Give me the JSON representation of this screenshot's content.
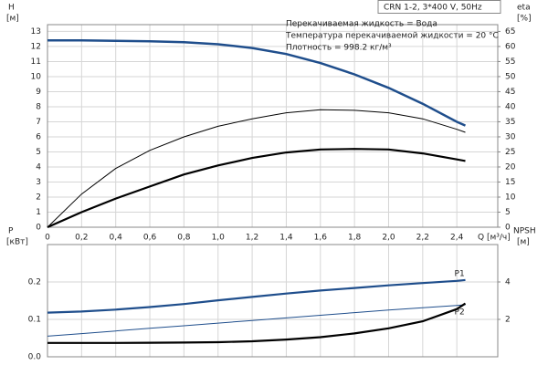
{
  "chart_data": [
    {
      "type": "line",
      "title": "CRN 1-2, 3*400 V, 50Hz",
      "annotations": [
        "Перекачиваемая жидкость = Вода",
        "Температура перекачиваемой жидкости = 20 °C",
        "Плотность = 998.2 кг/м³"
      ],
      "ylabel": "H",
      "yunit": "[м]",
      "y2label": "eta",
      "y2unit": "[%]",
      "xlabel": "Q [м³/ч]",
      "x": [
        0,
        0.2,
        0.4,
        0.6,
        0.8,
        1.0,
        1.2,
        1.4,
        1.6,
        1.8,
        2.0,
        2.2,
        2.4,
        2.45
      ],
      "xlim": [
        0,
        2.64
      ],
      "xticks": [
        0,
        {
          "value": 0.2,
          "label": "0,2"
        },
        {
          "value": 0.4,
          "label": "0,4"
        },
        {
          "value": 0.6,
          "label": "0,6"
        },
        {
          "value": 0.8,
          "label": "0,8"
        },
        {
          "value": 1.0,
          "label": "1,0"
        },
        {
          "value": 1.2,
          "label": "1,2"
        },
        {
          "value": 1.4,
          "label": "1,4"
        },
        {
          "value": 1.6,
          "label": "1,6"
        },
        {
          "value": 1.8,
          "label": "1,8"
        },
        {
          "value": 2.0,
          "label": "2,0"
        },
        {
          "value": 2.2,
          "label": "2,2"
        },
        {
          "value": 2.4,
          "label": "2,4"
        }
      ],
      "ylim": [
        0,
        13.45
      ],
      "yticks": [
        0,
        1,
        2,
        3,
        4,
        5,
        6,
        7,
        8,
        9,
        10,
        11,
        12,
        13
      ],
      "y2lim": [
        0,
        67.25
      ],
      "y2ticks": [
        0,
        5,
        10,
        15,
        20,
        25,
        30,
        35,
        40,
        45,
        50,
        55,
        60,
        65
      ],
      "grid": true,
      "series": [
        {
          "color": "#1f4e8c",
          "width": 2.5,
          "values": [
            12.4,
            12.4,
            12.38,
            12.35,
            12.28,
            12.15,
            11.9,
            11.5,
            10.9,
            10.15,
            9.25,
            8.2,
            7.0,
            6.75
          ]
        },
        {
          "color": "#000000",
          "width": 1,
          "axis": "y2",
          "values": [
            0,
            11,
            19.5,
            25.5,
            30,
            33.5,
            36,
            38,
            39,
            38.8,
            38,
            36,
            32.5,
            31.5
          ]
        },
        {
          "color": "#000000",
          "width": 2.2,
          "axis": "y2",
          "values": [
            0,
            5,
            9.5,
            13.5,
            17.5,
            20.5,
            23,
            24.8,
            25.8,
            26,
            25.8,
            24.5,
            22.5,
            22
          ]
        }
      ]
    },
    {
      "type": "line",
      "ylabel": "P",
      "yunit": "[кВт]",
      "y2label": "NPSH",
      "y2unit": "[м]",
      "x": [
        0,
        0.2,
        0.4,
        0.6,
        0.8,
        1.0,
        1.2,
        1.4,
        1.6,
        1.8,
        2.0,
        2.2,
        2.4,
        2.45
      ],
      "xlim": [
        0,
        2.64
      ],
      "ylim": [
        0,
        0.3
      ],
      "yticks": [
        {
          "value": 0,
          "label": "0.0"
        },
        0.1,
        0.2
      ],
      "y2lim": [
        0,
        6
      ],
      "y2ticks": [
        2,
        4
      ],
      "grid": true,
      "series": [
        {
          "name": "P1",
          "color": "#1f4e8c",
          "width": 2.2,
          "values": [
            0.118,
            0.121,
            0.126,
            0.133,
            0.141,
            0.151,
            0.16,
            0.169,
            0.177,
            0.184,
            0.191,
            0.197,
            0.203,
            0.205
          ]
        },
        {
          "name": "P2",
          "color": "#1f4e8c",
          "width": 1,
          "values": [
            0.055,
            0.062,
            0.069,
            0.076,
            0.083,
            0.09,
            0.097,
            0.104,
            0.111,
            0.118,
            0.125,
            0.131,
            0.137,
            0.139
          ]
        },
        {
          "color": "#000000",
          "width": 2.2,
          "axis": "y2",
          "values": [
            0.74,
            0.74,
            0.74,
            0.75,
            0.76,
            0.78,
            0.83,
            0.92,
            1.05,
            1.25,
            1.52,
            1.9,
            2.55,
            2.85
          ]
        }
      ]
    }
  ]
}
